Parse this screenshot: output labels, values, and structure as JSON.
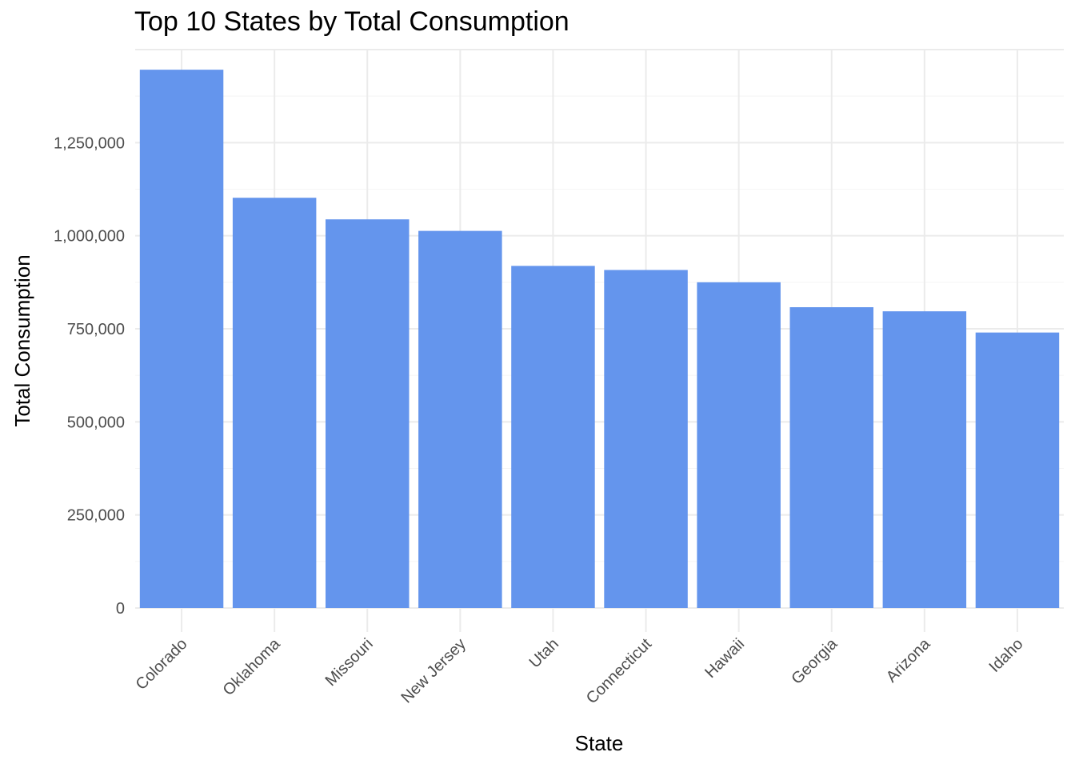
{
  "chart_data": {
    "type": "bar",
    "title": "Top 10 States by Total Consumption",
    "xlabel": "State",
    "ylabel": "Total Consumption",
    "categories": [
      "Colorado",
      "Oklahoma",
      "Missouri",
      "New Jersey",
      "Utah",
      "Connecticut",
      "Hawaii",
      "Georgia",
      "Arizona",
      "Idaho"
    ],
    "values": [
      1446000,
      1102000,
      1044000,
      1013000,
      919000,
      908000,
      875000,
      808000,
      797000,
      740000
    ],
    "ylim": [
      0,
      1500000
    ],
    "yticks": [
      0,
      250000,
      500000,
      750000,
      1000000,
      1250000
    ],
    "ytick_labels": [
      "0",
      "250,000",
      "500,000",
      "750,000",
      "1,000,000",
      "1,250,000"
    ],
    "grid": true,
    "legend": "none",
    "bar_color": "#6495ED",
    "grid_major_color": "#EBEBEB",
    "grid_minor_color": "#F5F5F5"
  }
}
